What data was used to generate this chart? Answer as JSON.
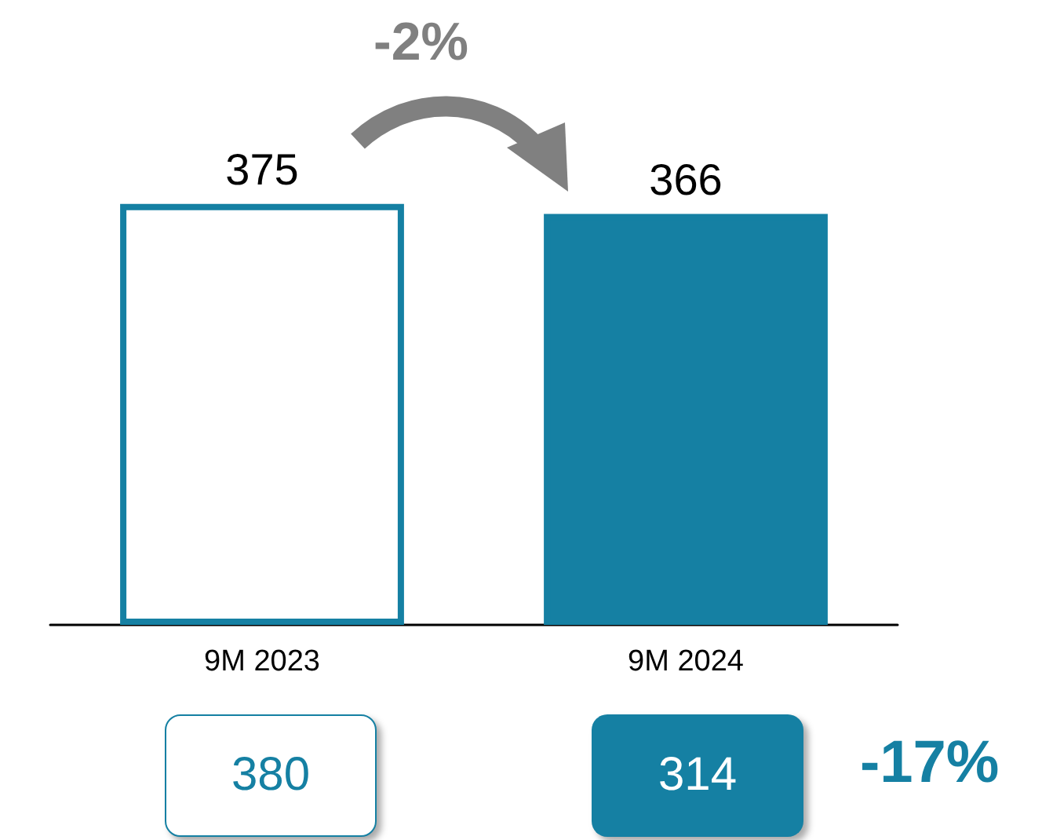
{
  "chart_data": {
    "type": "bar",
    "categories": [
      "9M 2023",
      "9M 2024"
    ],
    "values": [
      375,
      366
    ],
    "color": "#1580a3",
    "colors": [
      "#ffffff",
      "#1580a3"
    ],
    "data_labels": true,
    "annotations": [
      "-2%",
      "380",
      "314",
      "-17%"
    ]
  }
}
